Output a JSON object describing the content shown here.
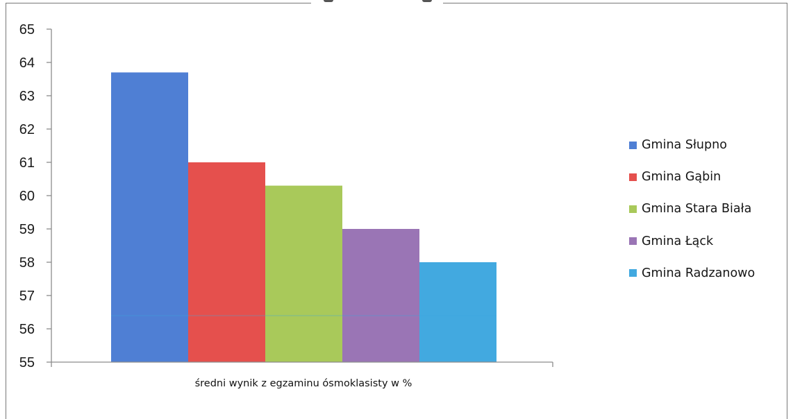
{
  "chart_data": {
    "type": "bar",
    "title": "",
    "xlabel": "średni wynik z egzaminu ósmoklasisty w %",
    "ylabel": "",
    "ylim": [
      55,
      65
    ],
    "yticks": [
      "55",
      "56",
      "57",
      "58",
      "59",
      "60",
      "61",
      "62",
      "63",
      "64",
      "65"
    ],
    "grid": false,
    "legend_position": "right",
    "categories": [
      "średni wynik z egzaminu ósmoklasisty w %"
    ],
    "series": [
      {
        "name": "Gmina Słupno",
        "values": [
          63.7
        ],
        "color": "#4f7fd4"
      },
      {
        "name": "Gmina Gąbin",
        "values": [
          61.0
        ],
        "color": "#e5504d"
      },
      {
        "name": "Gmina Stara Biała",
        "values": [
          60.3
        ],
        "color": "#a9c95a"
      },
      {
        "name": "Gmina Łąck",
        "values": [
          59.0
        ],
        "color": "#9a75b5"
      },
      {
        "name": "Gmina Radzanowo",
        "values": [
          58.0
        ],
        "color": "#42a9e0"
      }
    ]
  }
}
